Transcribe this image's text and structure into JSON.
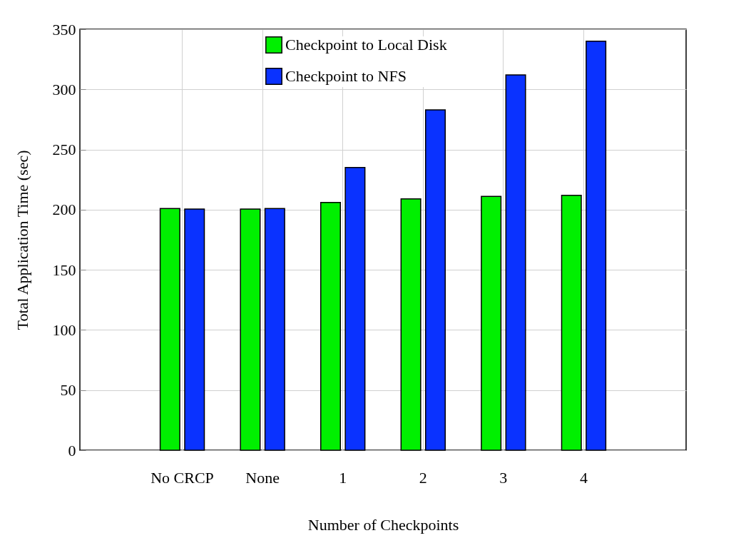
{
  "chart_data": {
    "type": "bar",
    "xlabel": "Number of Checkpoints",
    "ylabel": "Total Application Time (sec)",
    "categories": [
      "No CRCP",
      "None",
      "1",
      "2",
      "3",
      "4"
    ],
    "series": [
      {
        "name": "Checkpoint to Local Disk",
        "color": "#00f000",
        "values": [
          201,
          200.5,
          206,
          209,
          211,
          212
        ]
      },
      {
        "name": "Checkpoint to NFS",
        "color": "#0a32ff",
        "values": [
          200.5,
          201,
          235,
          283,
          312,
          340
        ]
      }
    ],
    "ylim": [
      0,
      350
    ],
    "yticks": [
      0,
      50,
      100,
      150,
      200,
      250,
      300,
      350
    ],
    "grid": true,
    "legend": "top"
  }
}
